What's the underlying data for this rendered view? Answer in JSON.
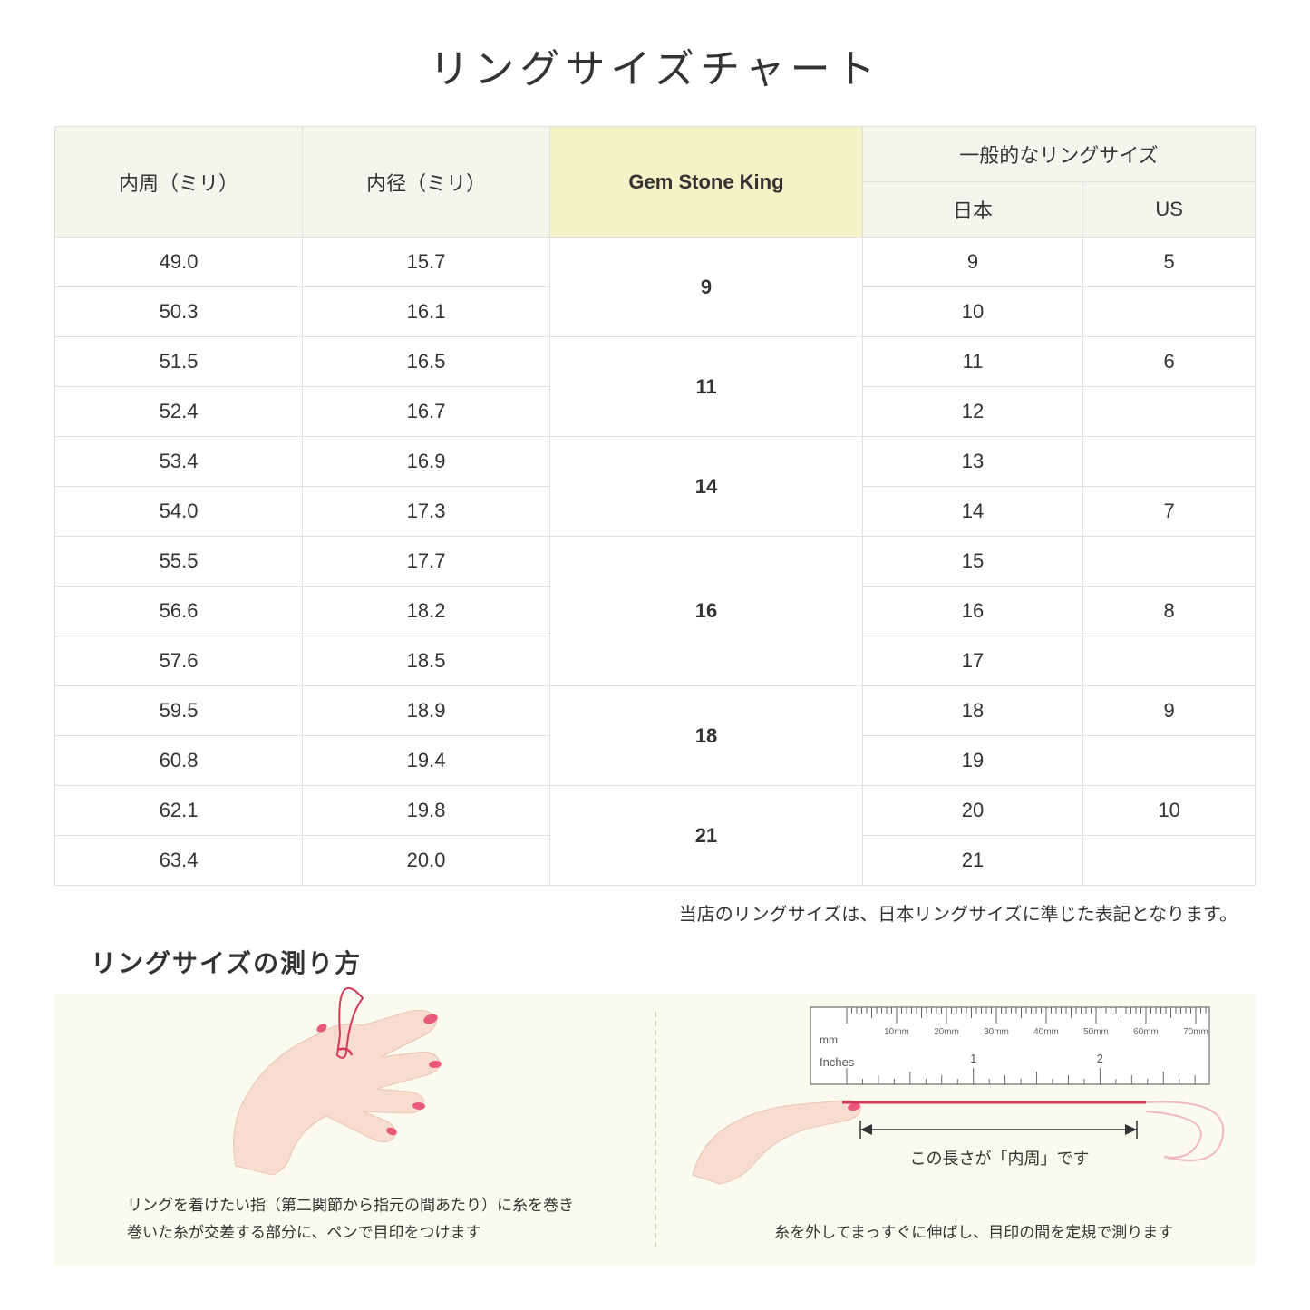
{
  "title": "リングサイズチャート",
  "headers": {
    "circumference": "内周（ミリ）",
    "diameter": "内径（ミリ）",
    "gem": "Gem Stone King",
    "general": "一般的なリングサイズ",
    "japan": "日本",
    "us": "US"
  },
  "groups": [
    {
      "gem": "9",
      "rows": [
        {
          "c": "49.0",
          "d": "15.7",
          "jp": "9",
          "us": "5"
        },
        {
          "c": "50.3",
          "d": "16.1",
          "jp": "10",
          "us": ""
        }
      ]
    },
    {
      "gem": "11",
      "rows": [
        {
          "c": "51.5",
          "d": "16.5",
          "jp": "11",
          "us": "6"
        },
        {
          "c": "52.4",
          "d": "16.7",
          "jp": "12",
          "us": ""
        }
      ]
    },
    {
      "gem": "14",
      "rows": [
        {
          "c": "53.4",
          "d": "16.9",
          "jp": "13",
          "us": ""
        },
        {
          "c": "54.0",
          "d": "17.3",
          "jp": "14",
          "us": "7"
        }
      ]
    },
    {
      "gem": "16",
      "rows": [
        {
          "c": "55.5",
          "d": "17.7",
          "jp": "15",
          "us": ""
        },
        {
          "c": "56.6",
          "d": "18.2",
          "jp": "16",
          "us": "8"
        },
        {
          "c": "57.6",
          "d": "18.5",
          "jp": "17",
          "us": ""
        }
      ]
    },
    {
      "gem": "18",
      "rows": [
        {
          "c": "59.5",
          "d": "18.9",
          "jp": "18",
          "us": "9"
        },
        {
          "c": "60.8",
          "d": "19.4",
          "jp": "19",
          "us": ""
        }
      ]
    },
    {
      "gem": "21",
      "rows": [
        {
          "c": "62.1",
          "d": "19.8",
          "jp": "20",
          "us": "10"
        },
        {
          "c": "63.4",
          "d": "20.0",
          "jp": "21",
          "us": ""
        }
      ]
    }
  ],
  "note": "当店のリングサイズは、日本リングサイズに準じた表記となります。",
  "subtitle": "リングサイズの測り方",
  "instruction_left": "リングを着けたい指（第二関節から指元の間あたり）に糸を巻き\n巻いた糸が交差する部分に、ペンで目印をつけます",
  "instruction_right": "糸を外してまっすぐに伸ばし、目印の間を定規で測ります",
  "ruler_label": "この長さが「内周」です",
  "ruler": {
    "mm_label": "mm",
    "inches_label": "Inches",
    "mm_marks": [
      "10mm",
      "20mm",
      "30mm",
      "40mm",
      "50mm",
      "60mm",
      "70mm"
    ],
    "inch_marks": [
      "1",
      "2"
    ]
  },
  "colors": {
    "header_bg": "#f5f5ee",
    "gem_bg": "#f3f3c8",
    "border": "#e0e0dc",
    "instruction_bg": "#fbfaee",
    "skin": "#f8dcd0",
    "skin_dark": "#e8c4b4",
    "nail": "#e85a7a",
    "thread": "#d43958"
  }
}
